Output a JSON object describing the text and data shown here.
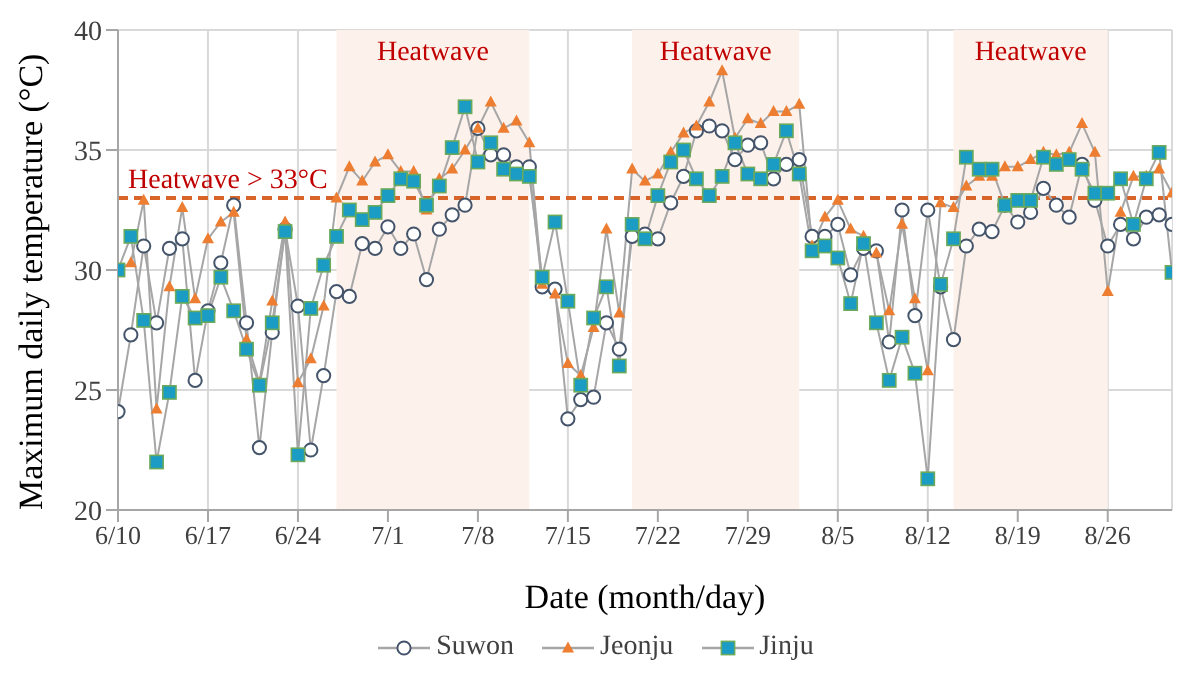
{
  "chart_data": {
    "type": "line",
    "xlabel": "Date (month/day)",
    "ylabel": "Maximum daily temperature (°C)",
    "x": [
      "--06-10",
      "--06-11",
      "--06-12",
      "--06-13",
      "--06-14",
      "--06-15",
      "--06-16",
      "--06-17",
      "--06-18",
      "--06-19",
      "--06-20",
      "--06-21",
      "--06-22",
      "--06-23",
      "--06-24",
      "--06-25",
      "--06-26",
      "--06-27",
      "--06-28",
      "--06-29",
      "--06-30",
      "--07-01",
      "--07-02",
      "--07-03",
      "--07-04",
      "--07-05",
      "--07-06",
      "--07-07",
      "--07-08",
      "--07-09",
      "--07-10",
      "--07-11",
      "--07-12",
      "--07-13",
      "--07-14",
      "--07-15",
      "--07-16",
      "--07-17",
      "--07-18",
      "--07-19",
      "--07-20",
      "--07-21",
      "--07-22",
      "--07-23",
      "--07-24",
      "--07-25",
      "--07-26",
      "--07-27",
      "--07-28",
      "--07-29",
      "--07-30",
      "--07-31",
      "--08-01",
      "--08-02",
      "--08-03",
      "--08-04",
      "--08-05",
      "--08-06",
      "--08-07",
      "--08-08",
      "--08-09",
      "--08-10",
      "--08-11",
      "--08-12",
      "--08-13",
      "--08-14",
      "--08-15",
      "--08-16",
      "--08-17",
      "--08-18",
      "--08-19",
      "--08-20",
      "--08-21",
      "--08-22",
      "--08-23",
      "--08-24",
      "--08-25",
      "--08-26",
      "--08-27",
      "--08-28",
      "--08-29",
      "--08-30",
      "--08-31"
    ],
    "series": [
      {
        "name": "Suwon",
        "color": "#44546a",
        "marker": "circle",
        "values": [
          24.1,
          27.3,
          31.0,
          27.8,
          30.9,
          31.3,
          25.4,
          28.3,
          30.3,
          32.7,
          27.8,
          22.6,
          27.4,
          31.7,
          28.5,
          22.5,
          25.6,
          29.1,
          28.9,
          31.1,
          30.9,
          31.8,
          30.9,
          31.5,
          29.6,
          31.7,
          32.3,
          32.7,
          35.9,
          34.8,
          34.8,
          34.3,
          34.3,
          29.3,
          29.2,
          23.8,
          24.6,
          24.7,
          27.8,
          26.7,
          31.4,
          31.5,
          31.3,
          32.8,
          33.9,
          35.8,
          36.0,
          35.8,
          34.6,
          35.2,
          35.3,
          33.8,
          34.4,
          34.6,
          31.4,
          31.4,
          31.9,
          29.8,
          30.9,
          30.8,
          27.0,
          32.5,
          28.1,
          32.5,
          29.3,
          27.1,
          31.0,
          31.7,
          31.6,
          32.7,
          32.0,
          32.4,
          33.4,
          32.7,
          32.2,
          34.4,
          32.9,
          31.0,
          31.9,
          31.3,
          32.2,
          32.3,
          31.9
        ]
      },
      {
        "name": "Jeonju",
        "color": "#ed7d31",
        "marker": "triangle",
        "values": [
          30.0,
          30.3,
          32.9,
          24.2,
          29.3,
          32.6,
          28.8,
          31.3,
          32.0,
          32.4,
          27.1,
          25.3,
          28.7,
          32.0,
          25.3,
          26.3,
          28.5,
          33.0,
          34.3,
          33.7,
          34.5,
          34.8,
          34.1,
          34.1,
          32.5,
          33.8,
          34.2,
          35.0,
          35.9,
          37.0,
          35.9,
          36.2,
          35.3,
          29.4,
          29.0,
          26.1,
          25.6,
          27.6,
          31.7,
          28.2,
          34.2,
          33.7,
          34.0,
          34.9,
          35.7,
          36.0,
          37.0,
          38.3,
          35.5,
          36.3,
          36.1,
          36.6,
          36.6,
          36.9,
          31.0,
          32.2,
          32.9,
          31.7,
          31.4,
          30.7,
          28.3,
          31.9,
          28.8,
          25.8,
          32.8,
          32.6,
          33.5,
          33.9,
          33.9,
          34.3,
          34.3,
          34.6,
          34.9,
          34.8,
          34.9,
          36.1,
          34.9,
          29.1,
          32.4,
          33.9,
          33.9,
          34.2,
          33.2
        ]
      },
      {
        "name": "Jinju",
        "color": "#1a9cc4",
        "marker": "square",
        "values": [
          30.0,
          31.4,
          27.9,
          22.0,
          24.9,
          28.9,
          28.0,
          28.1,
          29.7,
          28.3,
          26.7,
          25.2,
          27.8,
          31.6,
          22.3,
          28.4,
          30.2,
          31.4,
          32.5,
          32.1,
          32.4,
          33.1,
          33.8,
          33.7,
          32.7,
          33.5,
          35.1,
          36.8,
          34.5,
          35.3,
          34.2,
          34.0,
          33.9,
          29.7,
          32.0,
          28.7,
          25.2,
          28.0,
          29.3,
          26.0,
          31.9,
          31.3,
          33.1,
          34.5,
          35.0,
          33.8,
          33.1,
          33.9,
          35.3,
          34.0,
          33.8,
          34.4,
          35.8,
          34.0,
          30.8,
          31.0,
          30.5,
          28.6,
          31.1,
          27.8,
          25.4,
          27.2,
          25.7,
          21.3,
          29.4,
          31.3,
          34.7,
          34.2,
          34.2,
          32.7,
          32.9,
          32.9,
          34.7,
          34.4,
          34.6,
          34.2,
          33.2,
          33.2,
          33.8,
          31.9,
          33.8,
          34.9,
          29.9
        ]
      }
    ],
    "xlim": [
      "--06-10",
      "--08-31"
    ],
    "xticks": [
      {
        "value": "--06-10",
        "label": "6/10"
      },
      {
        "value": "--06-17",
        "label": "6/17"
      },
      {
        "value": "--06-24",
        "label": "6/24"
      },
      {
        "value": "--07-01",
        "label": "7/1"
      },
      {
        "value": "--07-08",
        "label": "7/8"
      },
      {
        "value": "--07-15",
        "label": "7/15"
      },
      {
        "value": "--07-22",
        "label": "7/22"
      },
      {
        "value": "--07-29",
        "label": "7/29"
      },
      {
        "value": "--08-05",
        "label": "8/5"
      },
      {
        "value": "--08-12",
        "label": "8/12"
      },
      {
        "value": "--08-19",
        "label": "8/19"
      },
      {
        "value": "--08-26",
        "label": "8/26"
      }
    ],
    "ylim": [
      20,
      40
    ],
    "yticks": [
      20,
      25,
      30,
      35,
      40
    ],
    "ref_lines": [
      {
        "axis": "y",
        "value": 33,
        "label": "Heatwave > 33°C",
        "color": "#d9642a",
        "line_style": "dashed"
      }
    ],
    "bands": [
      {
        "axis": "x",
        "from": "--06-27",
        "to": "--07-12",
        "label": "Heatwave",
        "color": "#fdf1eb"
      },
      {
        "axis": "x",
        "from": "--07-20",
        "to": "--08-02",
        "label": "Heatwave",
        "color": "#fdf1eb"
      },
      {
        "axis": "x",
        "from": "--08-14",
        "to": "--08-26",
        "label": "Heatwave",
        "color": "#fdf1eb"
      }
    ],
    "grid": true,
    "legend": "bottom",
    "line_style": "solid"
  }
}
